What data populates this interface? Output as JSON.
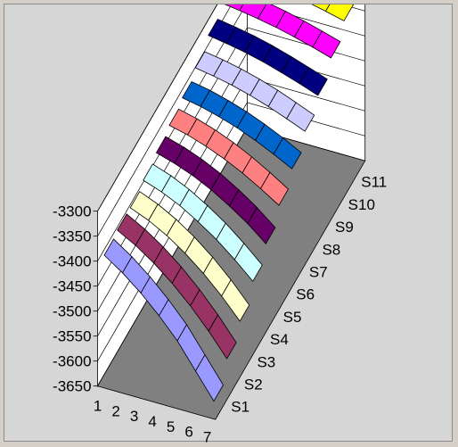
{
  "chart_data": {
    "type": "surface",
    "title": "",
    "x": [
      1,
      2,
      3,
      4,
      5,
      6,
      7
    ],
    "series_labels": [
      "S1",
      "S2",
      "S3",
      "S4",
      "S5",
      "S6",
      "S7",
      "S8",
      "S9",
      "S10",
      "S11"
    ],
    "z_ticks": [
      -3300,
      -3350,
      -3400,
      -3450,
      -3500,
      -3550,
      -3600,
      -3650
    ],
    "zlim": [
      -3650,
      -3300
    ],
    "series": [
      {
        "name": "S1",
        "color": "#9999ff",
        "values": [
          -3400,
          -3425,
          -3455,
          -3490,
          -3530,
          -3580,
          -3630
        ]
      },
      {
        "name": "S2",
        "color": "#993366",
        "values": [
          -3395,
          -3415,
          -3440,
          -3470,
          -3505,
          -3545,
          -3590
        ]
      },
      {
        "name": "S3",
        "color": "#ffffcc",
        "values": [
          -3395,
          -3410,
          -3430,
          -3455,
          -3485,
          -3520,
          -3560
        ]
      },
      {
        "name": "S4",
        "color": "#ccffff",
        "values": [
          -3385,
          -3398,
          -3415,
          -3437,
          -3462,
          -3492,
          -3525
        ]
      },
      {
        "name": "S5",
        "color": "#660066",
        "values": [
          -3375,
          -3386,
          -3400,
          -3418,
          -3440,
          -3465,
          -3495
        ]
      },
      {
        "name": "S6",
        "color": "#ff8080",
        "values": [
          -3365,
          -3374,
          -3386,
          -3401,
          -3419,
          -3440,
          -3463
        ]
      },
      {
        "name": "S7",
        "color": "#0066cc",
        "values": [
          -3355,
          -3362,
          -3372,
          -3384,
          -3399,
          -3416,
          -3435
        ]
      },
      {
        "name": "S8",
        "color": "#ccccff",
        "values": [
          -3340,
          -3346,
          -3354,
          -3364,
          -3376,
          -3390,
          -3405
        ]
      },
      {
        "name": "S9",
        "color": "#000080",
        "values": [
          -3320,
          -3326,
          -3333,
          -3342,
          -3353,
          -3365,
          -3378
        ]
      },
      {
        "name": "S10",
        "color": "#ff00ff",
        "values": [
          -3300,
          -3305,
          -3311,
          -3318,
          -3327,
          -3337,
          -3348
        ]
      },
      {
        "name": "S11",
        "color": "#ffff00",
        "values": [
          -3280,
          -3284,
          -3289,
          -3295,
          -3302,
          -3310,
          -3319
        ]
      }
    ],
    "grid": true,
    "floor_color": "#808080",
    "wall_color": "#ffffff"
  }
}
